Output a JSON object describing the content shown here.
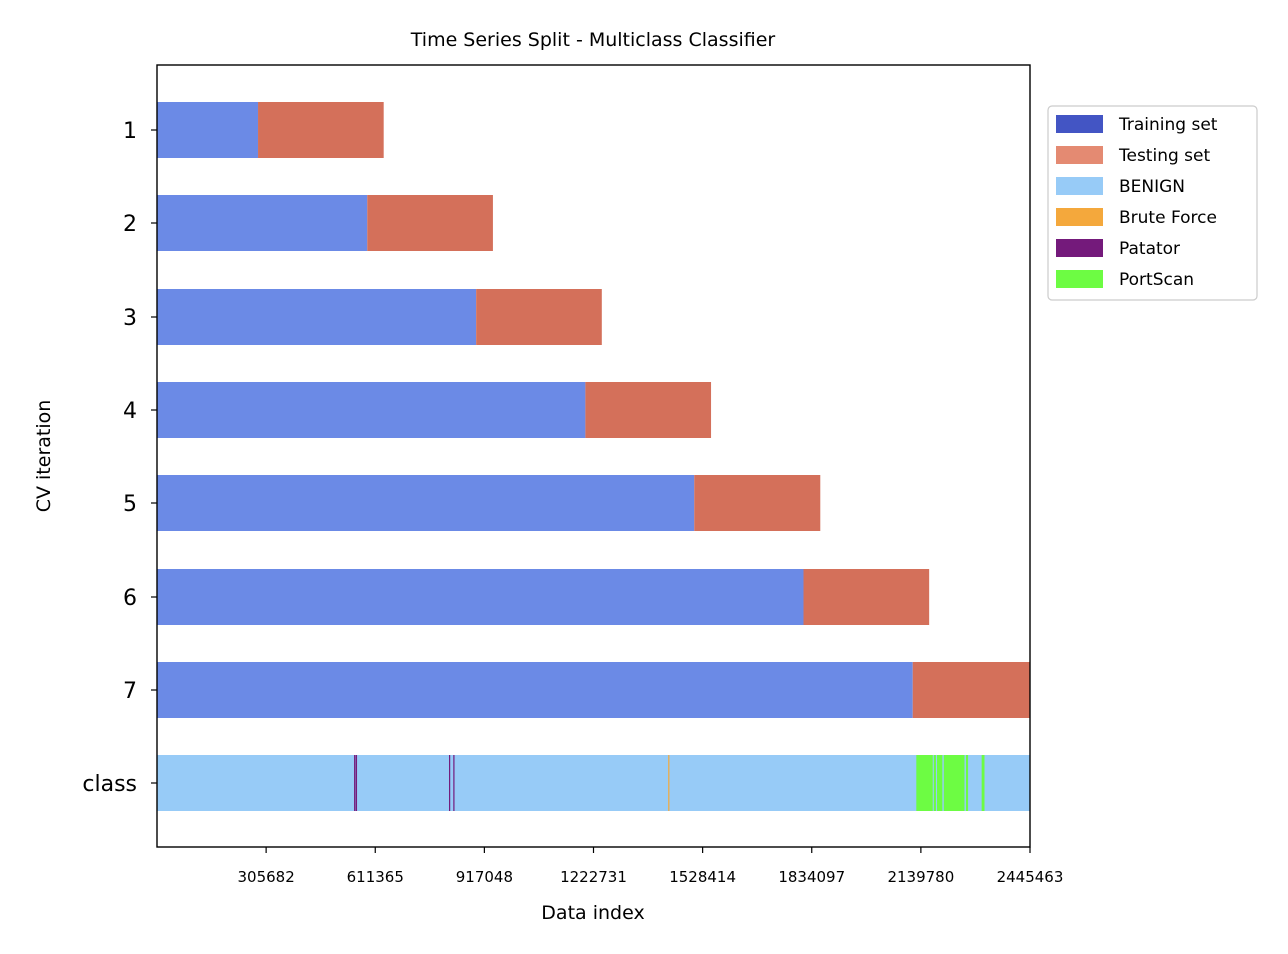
{
  "chart_data": {
    "type": "bar",
    "title": "Time Series Split - Multiclass Classifier",
    "xlabel": "Data index",
    "ylabel": "CV iteration",
    "xlim": [
      0,
      2445463
    ],
    "x_ticks": [
      "305682",
      "611365",
      "917048",
      "1222731",
      "1528414",
      "1834097",
      "2139780",
      "2445463"
    ],
    "x_tick_values": [
      305682,
      611365,
      917048,
      1222731,
      1528414,
      1834097,
      2139780,
      2445463
    ],
    "y_ticks": [
      "1",
      "2",
      "3",
      "4",
      "5",
      "6",
      "7",
      "class"
    ],
    "legend_position": "outside-right-top",
    "legend": [
      {
        "label": "Training set",
        "color": "#4355c4"
      },
      {
        "label": "Testing set",
        "color": "#e48a72"
      },
      {
        "label": "BENIGN",
        "color": "#97cbf7"
      },
      {
        "label": "Brute Force",
        "color": "#f4a83c"
      },
      {
        "label": "Patator",
        "color": "#741a7b"
      },
      {
        "label": "PortScan",
        "color": "#6dfc43"
      }
    ],
    "series_colors": {
      "train": "#6b8ae6",
      "test": "#d4705a"
    },
    "splits": [
      {
        "iteration": "1",
        "train": [
          0,
          283000
        ],
        "test": [
          283000,
          635000
        ]
      },
      {
        "iteration": "2",
        "train": [
          0,
          589000
        ],
        "test": [
          589000,
          941000
        ]
      },
      {
        "iteration": "3",
        "train": [
          0,
          894000
        ],
        "test": [
          894000,
          1246000
        ]
      },
      {
        "iteration": "4",
        "train": [
          0,
          1200000
        ],
        "test": [
          1200000,
          1552000
        ]
      },
      {
        "iteration": "5",
        "train": [
          0,
          1505000
        ],
        "test": [
          1505000,
          1858000
        ]
      },
      {
        "iteration": "6",
        "train": [
          0,
          1811000
        ],
        "test": [
          1811000,
          2163000
        ]
      },
      {
        "iteration": "7",
        "train": [
          0,
          2117000
        ],
        "test": [
          2117000,
          2445463
        ]
      }
    ],
    "class_row": {
      "label": "class",
      "base": {
        "class": "BENIGN",
        "color": "#97cbf7",
        "range": [
          0,
          2445463
        ]
      },
      "segments": [
        {
          "class": "Patator",
          "color": "#741a7b",
          "range": [
            552000,
            556000
          ]
        },
        {
          "class": "Patator",
          "color": "#741a7b",
          "range": [
            557000,
            560000
          ]
        },
        {
          "class": "Patator",
          "color": "#741a7b",
          "range": [
            818000,
            821000
          ]
        },
        {
          "class": "Patator",
          "color": "#741a7b",
          "range": [
            830000,
            833000
          ]
        },
        {
          "class": "Brute Force",
          "color": "#f4a83c",
          "range": [
            1432000,
            1435000
          ]
        },
        {
          "class": "PortScan",
          "color": "#6dfc43",
          "range": [
            2127000,
            2173000
          ]
        },
        {
          "class": "PortScan",
          "color": "#6dfc43",
          "range": [
            2176000,
            2182000
          ]
        },
        {
          "class": "PortScan",
          "color": "#6dfc43",
          "range": [
            2185000,
            2200000
          ]
        },
        {
          "class": "PortScan",
          "color": "#6dfc43",
          "range": [
            2204000,
            2262000
          ]
        },
        {
          "class": "PortScan",
          "color": "#6dfc43",
          "range": [
            2266000,
            2272000
          ]
        },
        {
          "class": "PortScan",
          "color": "#6dfc43",
          "range": [
            2310000,
            2318000
          ]
        }
      ]
    }
  }
}
